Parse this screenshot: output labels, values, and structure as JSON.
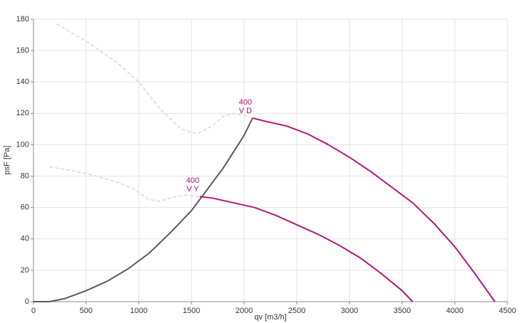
{
  "chart_data": {
    "type": "line",
    "x_label": "qv [m3/h]",
    "y_label": "psF [Pa]",
    "xlim": [
      0,
      4500
    ],
    "xticks": [
      0,
      500,
      1000,
      1500,
      2000,
      2500,
      3000,
      3500,
      4000,
      4500
    ],
    "ylim": [
      0,
      180
    ],
    "yticks": [
      0,
      20,
      40,
      60,
      80,
      100,
      120,
      140,
      160,
      180
    ],
    "grid": true,
    "series": [
      {
        "color": "#5a5a5a",
        "dash": false,
        "x": [
          0,
          150,
          300,
          500,
          700,
          900,
          1100,
          1300,
          1500,
          1600,
          1800,
          2000,
          2080
        ],
        "values": [
          0,
          0,
          2,
          7,
          13,
          21,
          31,
          44,
          58,
          67,
          85,
          106,
          117
        ]
      },
      {
        "color": "#b5177a",
        "dash": false,
        "label": [
          "400",
          "V D"
        ],
        "x": [
          2080,
          2200,
          2400,
          2600,
          2800,
          3000,
          3200,
          3400,
          3600,
          3800,
          4000,
          4200,
          4380
        ],
        "values": [
          117,
          115,
          112,
          107,
          100,
          92,
          83,
          73,
          63,
          50,
          35,
          17,
          0
        ]
      },
      {
        "color": "#b5177a",
        "dash": false,
        "label": [
          "400",
          "V Y"
        ],
        "x": [
          1580,
          1700,
          1900,
          2100,
          2300,
          2500,
          2700,
          2900,
          3100,
          3300,
          3500,
          3600
        ],
        "values": [
          67,
          66,
          63,
          60,
          55,
          49,
          43,
          36,
          28,
          18,
          7,
          0
        ]
      },
      {
        "color": "#d8d8d8",
        "dash": true,
        "x": [
          220,
          500,
          800,
          1000,
          1200,
          1400,
          1550,
          1700,
          1800,
          1900,
          2050
        ],
        "values": [
          177,
          166,
          152,
          140,
          123,
          110,
          107,
          112,
          118,
          120,
          118
        ]
      },
      {
        "color": "#d8d8d8",
        "dash": true,
        "x": [
          150,
          400,
          600,
          800,
          950,
          1100,
          1200,
          1350,
          1450,
          1580
        ],
        "values": [
          86,
          83,
          80,
          76,
          72,
          65,
          64,
          67,
          68,
          67
        ]
      }
    ]
  }
}
